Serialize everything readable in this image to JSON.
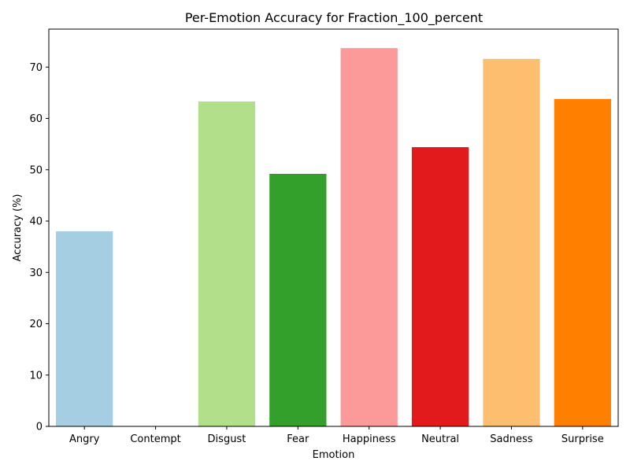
{
  "chart_data": {
    "type": "bar",
    "title": "Per-Emotion Accuracy for Fraction_100_percent",
    "xlabel": "Emotion",
    "ylabel": "Accuracy (%)",
    "categories": [
      "Angry",
      "Contempt",
      "Disgust",
      "Fear",
      "Happiness",
      "Neutral",
      "Sadness",
      "Surprise"
    ],
    "values": [
      38.0,
      0.0,
      63.3,
      49.2,
      73.7,
      54.4,
      71.6,
      63.8
    ],
    "colors": [
      "#a6cee3",
      "#1f78b4",
      "#b2df8a",
      "#33a02c",
      "#fb9a99",
      "#e31a1c",
      "#fdbf6f",
      "#ff7f00"
    ],
    "ylim": [
      0,
      77.4
    ],
    "yticks": [
      0,
      10,
      20,
      30,
      40,
      50,
      60,
      70
    ],
    "grid": false,
    "legend": "none"
  }
}
